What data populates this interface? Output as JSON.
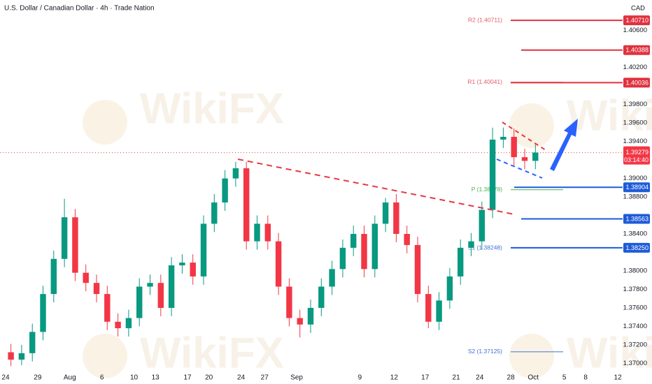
{
  "header": {
    "title": "U.S. Dollar / Canadian Dollar · 4h · Trade Nation",
    "currency": "CAD"
  },
  "watermark": "WikiFX",
  "chart_data": {
    "type": "candlestick",
    "up_color": "#089981",
    "down_color": "#f23645",
    "xlim": [
      -0.52,
      57.65
    ],
    "ylim": [
      1.3689,
      1.4093
    ],
    "x": [
      0.5,
      1.5,
      2.5,
      3.5,
      4.5,
      5.5,
      6.5,
      7.5,
      8.5,
      9.5,
      10.5,
      11.5,
      12.5,
      13.5,
      14.5,
      15.5,
      16.5,
      17.5,
      18.5,
      19.5,
      20.5,
      21.5,
      22.5,
      23.5,
      24.5,
      25.5,
      26.5,
      27.5,
      28.5,
      29.5,
      30.5,
      31.5,
      32.5,
      33.5,
      34.5,
      35.5,
      36.5,
      37.5,
      38.5,
      39.5,
      40.5,
      41.5,
      42.5,
      43.5,
      44.5,
      45.5,
      46.5,
      47.5,
      48.5,
      49.5
    ],
    "open": [
      1.3712,
      1.3704,
      1.3711,
      1.3734,
      1.3775,
      1.3813,
      1.3858,
      1.3798,
      1.3787,
      1.3775,
      1.3745,
      1.3738,
      1.3749,
      1.3783,
      1.3787,
      1.376,
      1.3806,
      1.3809,
      1.3794,
      1.3851,
      1.3874,
      1.39,
      1.3911,
      1.3832,
      1.3851,
      1.3832,
      1.3783,
      1.3749,
      1.3742,
      1.376,
      1.3783,
      1.3802,
      1.3825,
      1.384,
      1.3802,
      1.3851,
      1.3874,
      1.384,
      1.3828,
      1.3775,
      1.3745,
      1.3768,
      1.3794,
      1.3825,
      1.3832,
      1.3866,
      1.3942,
      1.3945,
      1.3923,
      1.3919
    ],
    "high": [
      1.3721,
      1.372,
      1.3743,
      1.3784,
      1.3822,
      1.3878,
      1.3867,
      1.3807,
      1.3796,
      1.3784,
      1.3754,
      1.3758,
      1.3792,
      1.3796,
      1.3796,
      1.3815,
      1.3818,
      1.3818,
      1.386,
      1.3883,
      1.3909,
      1.3918,
      1.3918,
      1.386,
      1.386,
      1.3841,
      1.3792,
      1.3758,
      1.3769,
      1.3792,
      1.3811,
      1.3834,
      1.3849,
      1.3849,
      1.386,
      1.3879,
      1.3883,
      1.3849,
      1.3837,
      1.3784,
      1.3777,
      1.3803,
      1.3834,
      1.3841,
      1.3875,
      1.3955,
      1.3955,
      1.3954,
      1.3932,
      1.3937
    ],
    "low": [
      1.3697,
      1.3698,
      1.3702,
      1.3725,
      1.3766,
      1.3804,
      1.3789,
      1.3778,
      1.3766,
      1.3736,
      1.3729,
      1.3729,
      1.374,
      1.3774,
      1.3751,
      1.3751,
      1.3797,
      1.3785,
      1.3785,
      1.3842,
      1.3865,
      1.3891,
      1.3823,
      1.3823,
      1.3823,
      1.3774,
      1.374,
      1.3728,
      1.3733,
      1.3751,
      1.3774,
      1.3793,
      1.3816,
      1.3793,
      1.3793,
      1.3842,
      1.3831,
      1.3819,
      1.3766,
      1.3738,
      1.3736,
      1.3759,
      1.3785,
      1.3816,
      1.3823,
      1.3857,
      1.3933,
      1.3914,
      1.391,
      1.391
    ],
    "close": [
      1.3704,
      1.3711,
      1.3734,
      1.3775,
      1.3813,
      1.3858,
      1.3798,
      1.3787,
      1.3775,
      1.3745,
      1.3738,
      1.3749,
      1.3783,
      1.3787,
      1.376,
      1.3806,
      1.3809,
      1.3794,
      1.3851,
      1.3874,
      1.39,
      1.3911,
      1.3832,
      1.3851,
      1.3832,
      1.3783,
      1.3749,
      1.3742,
      1.376,
      1.3783,
      1.3802,
      1.3825,
      1.384,
      1.3802,
      1.3851,
      1.3874,
      1.384,
      1.3828,
      1.3775,
      1.3745,
      1.3768,
      1.3794,
      1.3825,
      1.3832,
      1.3866,
      1.3942,
      1.3945,
      1.3923,
      1.3919,
      1.3928
    ],
    "xticks": [
      {
        "value": 0,
        "label": "24"
      },
      {
        "value": 3,
        "label": "29"
      },
      {
        "value": 6,
        "label": "Aug"
      },
      {
        "value": 9,
        "label": "6"
      },
      {
        "value": 12,
        "label": "10"
      },
      {
        "value": 14,
        "label": "13"
      },
      {
        "value": 17,
        "label": "17"
      },
      {
        "value": 19,
        "label": "20"
      },
      {
        "value": 22,
        "label": "24"
      },
      {
        "value": 24.2,
        "label": "27"
      },
      {
        "value": 27.2,
        "label": "Sep"
      },
      {
        "value": 33.1,
        "label": "9"
      },
      {
        "value": 36.3,
        "label": "12"
      },
      {
        "value": 39.2,
        "label": "17"
      },
      {
        "value": 42.1,
        "label": "21"
      },
      {
        "value": 44.3,
        "label": "24"
      },
      {
        "value": 47.2,
        "label": "28"
      },
      {
        "value": 49.3,
        "label": "Oct"
      },
      {
        "value": 52.2,
        "label": "5"
      },
      {
        "value": 54.2,
        "label": "8"
      },
      {
        "value": 57.2,
        "label": "12"
      }
    ],
    "yticks": [
      {
        "value": 1.37,
        "label": "1.37000"
      },
      {
        "value": 1.372,
        "label": "1.37200"
      },
      {
        "value": 1.374,
        "label": "1.37400"
      },
      {
        "value": 1.376,
        "label": "1.37600"
      },
      {
        "value": 1.378,
        "label": "1.37800"
      },
      {
        "value": 1.38,
        "label": "1.38000"
      },
      {
        "value": 1.384,
        "label": "1.38400"
      },
      {
        "value": 1.388,
        "label": "1.38800"
      },
      {
        "value": 1.39,
        "label": "1.39000"
      },
      {
        "value": 1.394,
        "label": "1.39400"
      },
      {
        "value": 1.396,
        "label": "1.39600"
      },
      {
        "value": 1.398,
        "label": "1.39800"
      },
      {
        "value": 1.402,
        "label": "1.40200"
      },
      {
        "value": 1.406,
        "label": "1.40600"
      }
    ],
    "levels": [
      {
        "value": 1.4071,
        "label": "1.40710",
        "color": "#e0323e"
      },
      {
        "value": 1.40388,
        "color": "#e0323e"
      },
      {
        "value": 1.40036,
        "color": "#e0323e"
      },
      {
        "value": 1.38904,
        "color": "#1e5bd8"
      },
      {
        "value": 1.38563,
        "color": "#1e5bd8"
      },
      {
        "value": 1.3825,
        "label": "1.38250",
        "color": "#1e5bd8"
      }
    ],
    "pivots": [
      {
        "name": "R2 (1.40711)",
        "value": 1.40711,
        "color": "#e05a66"
      },
      {
        "name": "R1 (1.40041)",
        "value": 1.40041,
        "color": "#e05a66"
      },
      {
        "name": "P (1.38878)",
        "value": 1.38878,
        "color": "#4caf50"
      },
      {
        "name": "S1 (1.38248)",
        "value": 1.38248,
        "color": "#3f6fd8"
      },
      {
        "name": "S2 (1.37125)",
        "value": 1.37125,
        "color": "#3f6fd8"
      }
    ],
    "last_price": 1.39279,
    "countdown": "03:14:40",
    "last_color": "#f23645"
  }
}
